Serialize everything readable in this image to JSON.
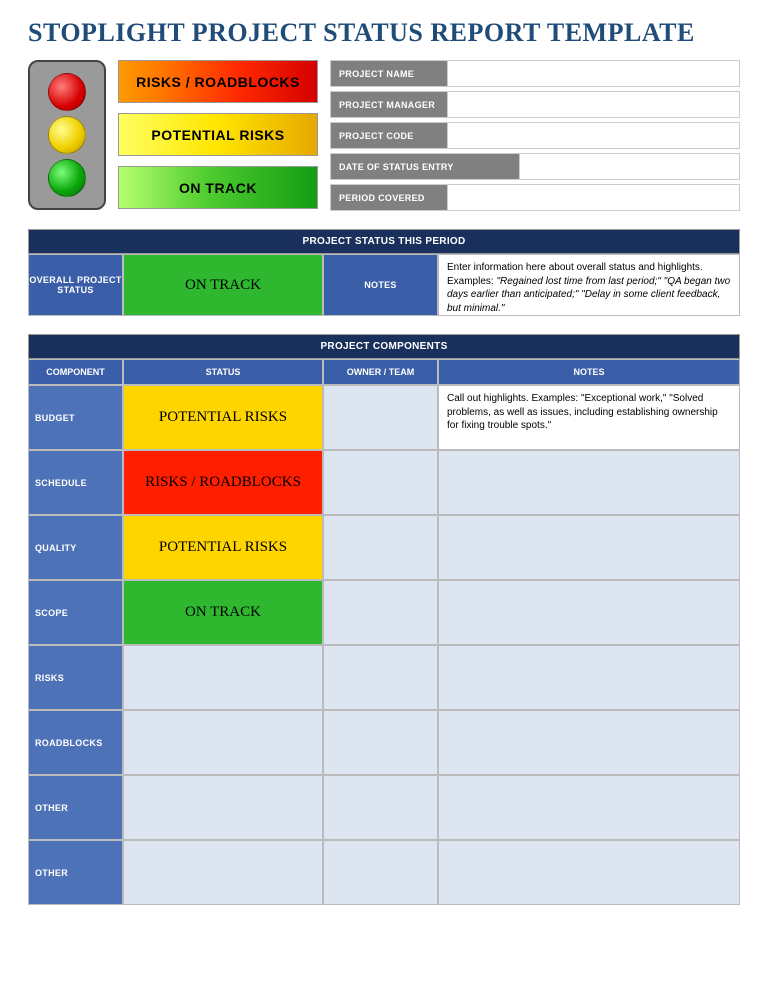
{
  "title": "STOPLIGHT PROJECT STATUS REPORT TEMPLATE",
  "colors": {
    "title": "#204c7a",
    "section_dark": "#19305c",
    "label_blue": "#3a5ea8",
    "label_blue2": "#4e72b8",
    "meta_grey": "#808080",
    "pale": "#dce5f0",
    "status_yellow": "#ffd500",
    "status_red": "#ff1f00",
    "status_green": "#2fb82f"
  },
  "legend": {
    "red": "RISKS / ROADBLOCKS",
    "yellow": "POTENTIAL RISKS",
    "green": "ON TRACK"
  },
  "meta": [
    {
      "label": "PROJECT NAME",
      "size": "small"
    },
    {
      "label": "PROJECT MANAGER",
      "size": "small"
    },
    {
      "label": "PROJECT CODE",
      "size": "small"
    },
    {
      "label": "DATE OF STATUS ENTRY",
      "size": "large"
    },
    {
      "label": "PERIOD COVERED",
      "size": "small"
    }
  ],
  "status_period": {
    "section_title": "PROJECT STATUS THIS PERIOD",
    "overall_label": "OVERALL PROJECT STATUS",
    "overall_value": "ON TRACK",
    "overall_status_key": "green",
    "notes_label": "NOTES",
    "notes_lead": "Enter information here about overall status and highlights. Examples:",
    "notes_examples": "\"Regained lost time from last period;\" \"QA began two days earlier than anticipated;\" \"Delay in some client feedback, but minimal.\""
  },
  "components": {
    "section_title": "PROJECT COMPONENTS",
    "headers": {
      "component": "COMPONENT",
      "status": "STATUS",
      "owner": "OWNER / TEAM",
      "notes": "NOTES"
    },
    "rows": [
      {
        "component": "BUDGET",
        "status_key": "yellow",
        "status_text": "POTENTIAL RISKS",
        "notes": "Call out highlights. Examples: \"Exceptional work,\" \"Solved problems, as well as issues, including establishing ownership for fixing trouble spots.\""
      },
      {
        "component": "SCHEDULE",
        "status_key": "red",
        "status_text": "RISKS / ROADBLOCKS",
        "notes": ""
      },
      {
        "component": "QUALITY",
        "status_key": "yellow",
        "status_text": "POTENTIAL RISKS",
        "notes": ""
      },
      {
        "component": "SCOPE",
        "status_key": "green",
        "status_text": "ON TRACK",
        "notes": ""
      },
      {
        "component": "RISKS",
        "status_key": "",
        "status_text": "",
        "notes": ""
      },
      {
        "component": "ROADBLOCKS",
        "status_key": "",
        "status_text": "",
        "notes": ""
      },
      {
        "component": "OTHER",
        "status_key": "",
        "status_text": "",
        "notes": ""
      },
      {
        "component": "OTHER",
        "status_key": "",
        "status_text": "",
        "notes": ""
      }
    ],
    "status_styles": {
      "yellow": {
        "bg": "#ffd500",
        "text": "#000"
      },
      "red": {
        "bg": "#ff1f00",
        "text": "#000"
      },
      "green": {
        "bg": "#2fb82f",
        "text": "#000"
      },
      "": {
        "bg": "#dce5f0",
        "text": "#000"
      }
    }
  }
}
